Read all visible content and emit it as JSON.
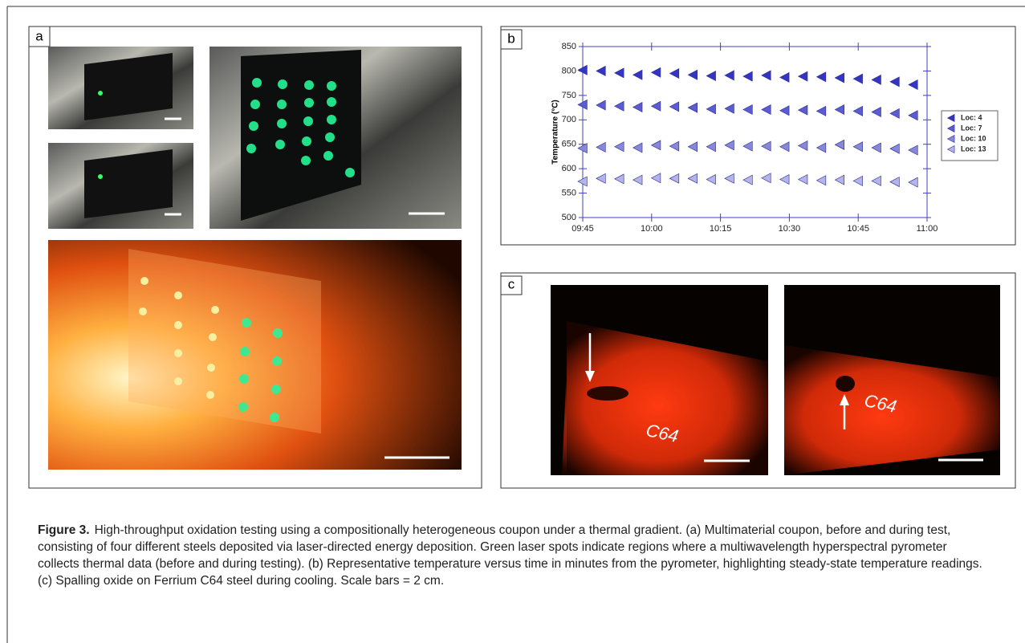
{
  "panels": [
    {
      "label": "a"
    },
    {
      "label": "b"
    },
    {
      "label": "c"
    }
  ],
  "photo_labels": [
    "C64",
    "C64"
  ],
  "chart_data": {
    "type": "scatter",
    "ylabel": "Temperature (°C)",
    "x": [
      0,
      4,
      8,
      12,
      16,
      20,
      24,
      28,
      32,
      36,
      40,
      44,
      48,
      52,
      56,
      60,
      64,
      68,
      72
    ],
    "xlim": [
      0,
      75
    ],
    "xticks": [
      {
        "value": 0,
        "label": "09:45"
      },
      {
        "value": 15,
        "label": "10:00"
      },
      {
        "value": 30,
        "label": "10:15"
      },
      {
        "value": 45,
        "label": "10:30"
      },
      {
        "value": 60,
        "label": "10:45"
      },
      {
        "value": 75,
        "label": "11:00"
      }
    ],
    "ylim": [
      500,
      850
    ],
    "yticks": [
      500,
      550,
      600,
      650,
      700,
      750,
      800,
      850
    ],
    "legend": "right",
    "series": [
      {
        "name": "Loc: 4",
        "color": "#3535c4",
        "values": [
          802,
          800,
          796,
          792,
          797,
          795,
          792,
          790,
          791,
          789,
          791,
          787,
          789,
          788,
          786,
          784,
          782,
          778,
          772
        ]
      },
      {
        "name": "Loc: 7",
        "color": "#5c5cd2",
        "values": [
          731,
          730,
          728,
          726,
          728,
          727,
          725,
          722,
          723,
          721,
          721,
          719,
          720,
          718,
          721,
          718,
          716,
          713,
          709
        ]
      },
      {
        "name": "Loc: 10",
        "color": "#8888d8",
        "values": [
          642,
          644,
          645,
          643,
          648,
          646,
          645,
          645,
          648,
          646,
          646,
          645,
          647,
          643,
          649,
          645,
          643,
          641,
          638
        ]
      },
      {
        "name": "Loc: 13",
        "color": "#b4b4ea",
        "values": [
          574,
          580,
          579,
          577,
          581,
          580,
          580,
          578,
          580,
          577,
          581,
          578,
          578,
          576,
          577,
          575,
          575,
          573,
          572
        ]
      }
    ]
  },
  "caption": {
    "label": "Figure 3.",
    "text": "High-throughput oxidation testing using a compositionally heterogeneous coupon under a thermal gradient. (a) Multimaterial coupon, before and during test, consisting of four different steels deposited via laser-directed energy deposition. Green laser spots indicate regions where a multiwavelength hyperspectral pyrometer collects thermal data (before and during testing). (b) Representative temperature versus time in minutes from the pyrometer, highlighting steady-state temperature readings. (c) Spalling oxide on Ferrium C64 steel during cooling. Scale bars = 2 cm."
  }
}
